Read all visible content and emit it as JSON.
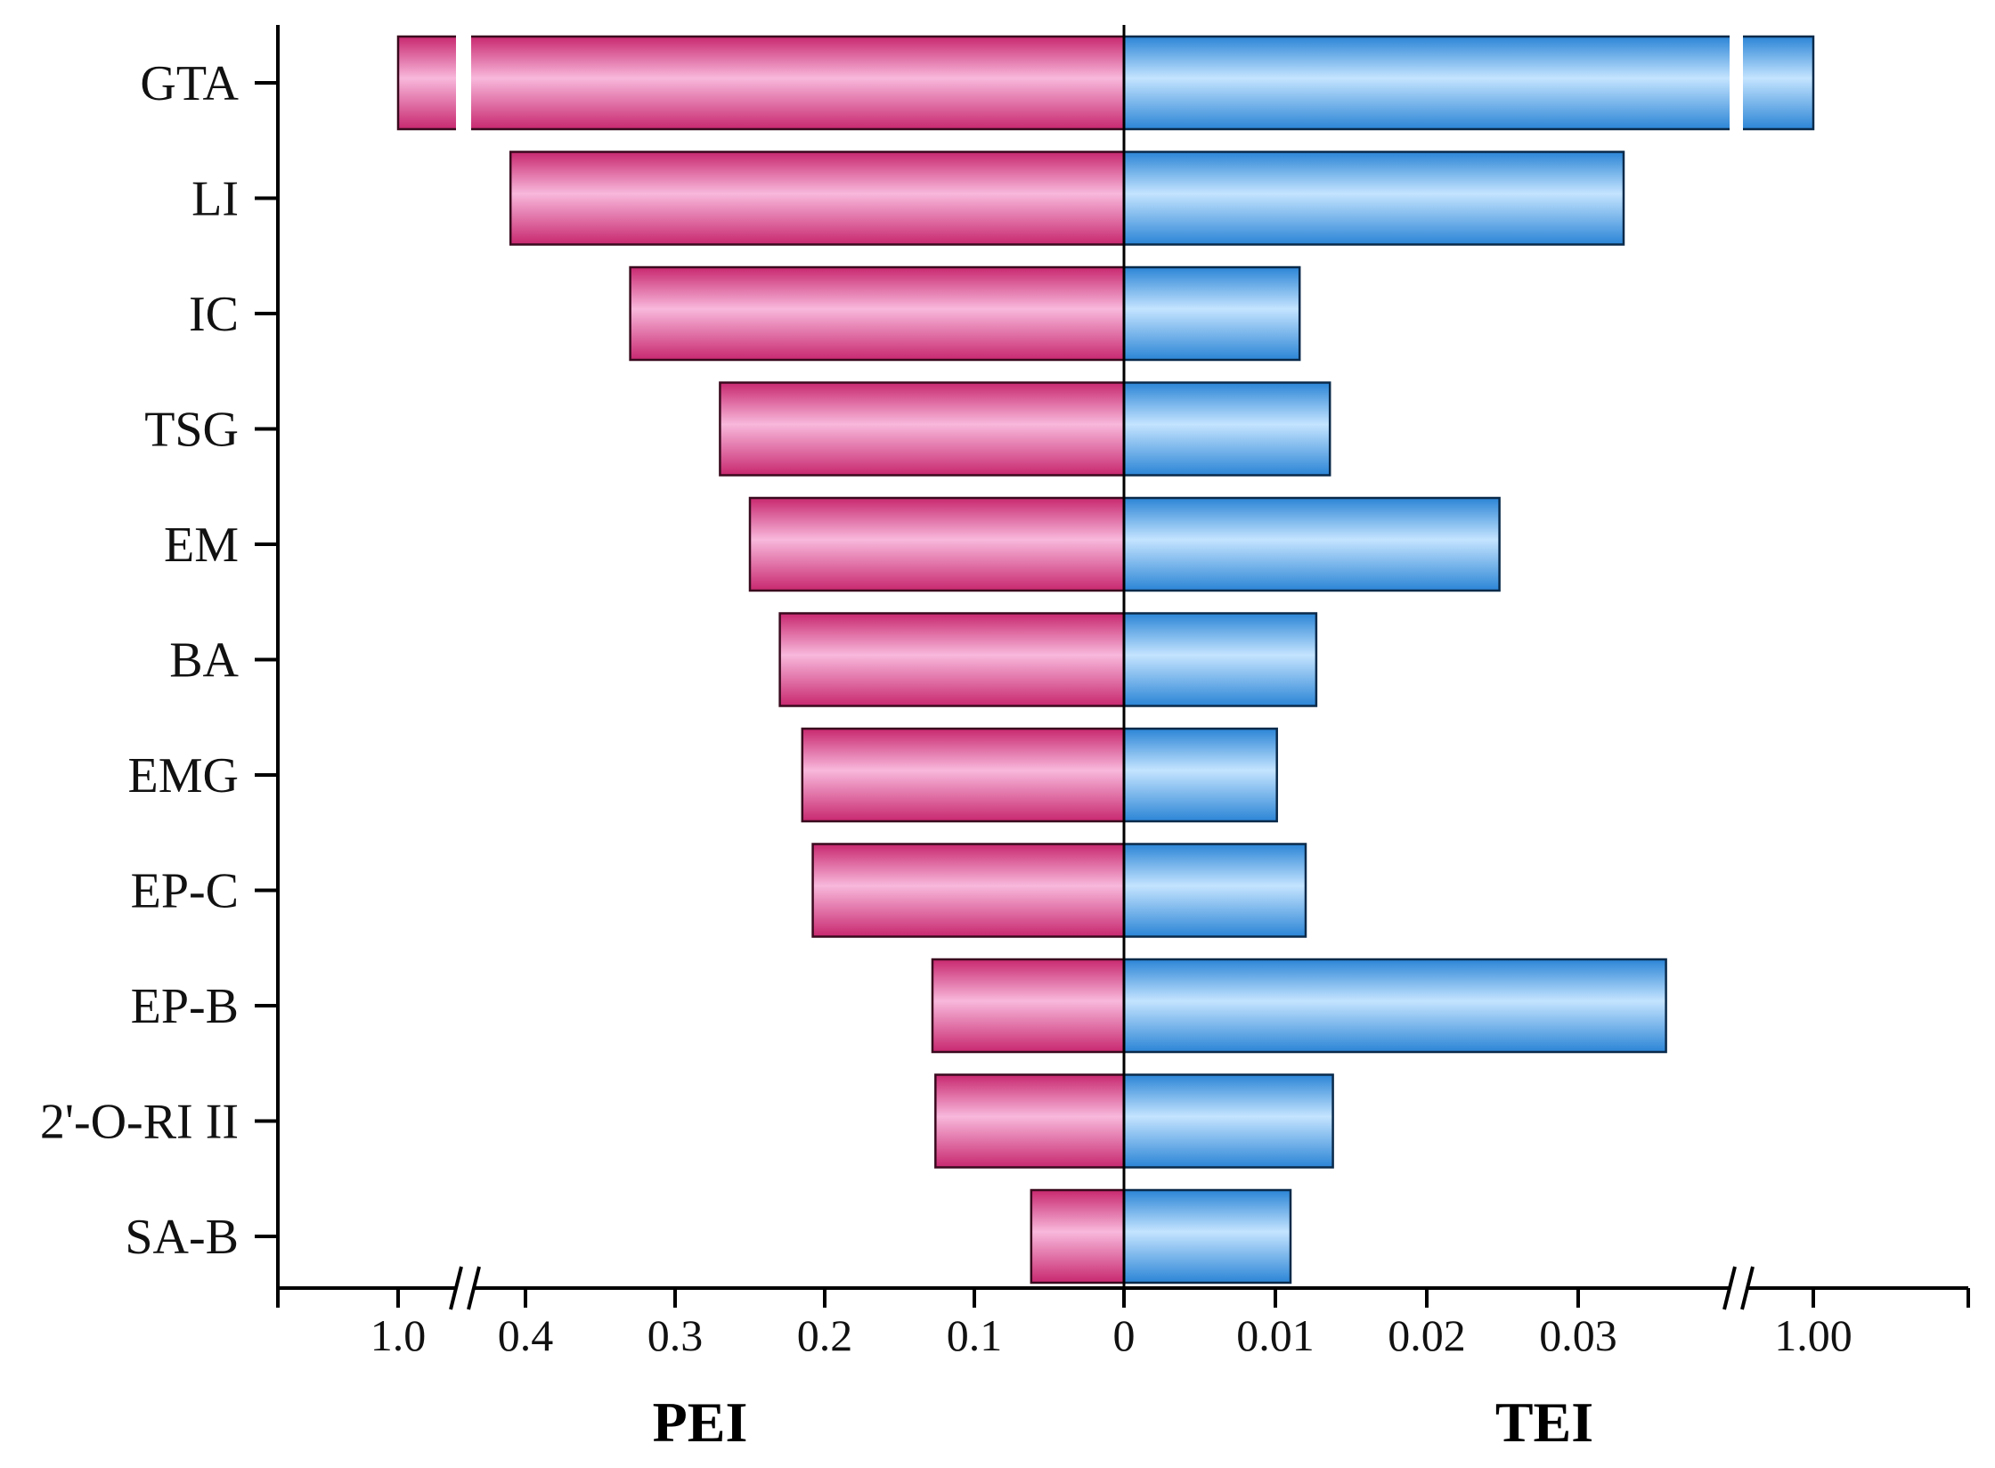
{
  "chart_data": {
    "type": "bar",
    "orientation": "horizontal-diverging",
    "categories": [
      "GTA",
      "LI",
      "IC",
      "TSG",
      "EM",
      "BA",
      "EMG",
      "EP-C",
      "EP-B",
      "2'-O-RI II",
      "SA-B"
    ],
    "series": [
      {
        "name": "PEI",
        "side": "left",
        "color": "#e0508f",
        "values": [
          1.0,
          0.41,
          0.33,
          0.27,
          0.25,
          0.23,
          0.215,
          0.208,
          0.128,
          0.126,
          0.062
        ]
      },
      {
        "name": "TEI",
        "side": "right",
        "color": "#4aa3e6",
        "values": [
          1.0,
          0.033,
          0.0116,
          0.0136,
          0.0248,
          0.0127,
          0.0101,
          0.012,
          0.0358,
          0.0138,
          0.011
        ]
      }
    ],
    "left_axis": {
      "title": "PEI",
      "tick_labels": [
        "1.0",
        "0.4",
        "0.3",
        "0.2",
        "0.1",
        "0"
      ],
      "tick_values": [
        1.0,
        0.4,
        0.3,
        0.2,
        0.1,
        0
      ],
      "break_between": [
        0.45,
        0.9
      ]
    },
    "right_axis": {
      "title": "TEI",
      "tick_labels": [
        "0.01",
        "0.02",
        "0.03",
        "1.00"
      ],
      "tick_values": [
        0.01,
        0.02,
        0.03,
        1.0
      ],
      "break_between": [
        0.04,
        0.95
      ]
    },
    "grid": false,
    "legend": "none"
  },
  "colors": {
    "pei_dark": "#c8286f",
    "pei_light": "#f8b8dc",
    "tei_dark": "#2b85d6",
    "tei_light": "#c4e4ff",
    "axis": "#000000"
  }
}
